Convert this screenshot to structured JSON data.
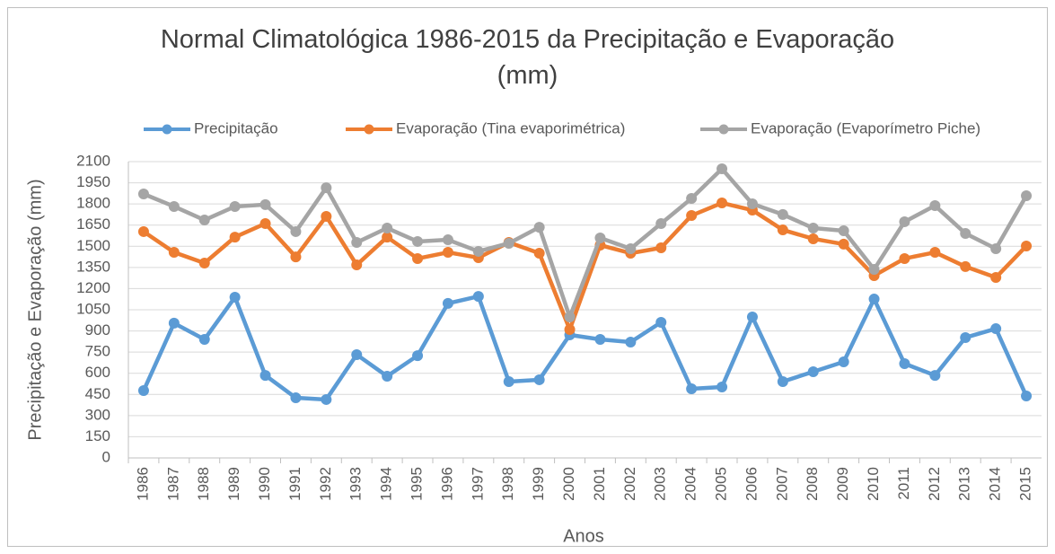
{
  "chart_data": {
    "type": "line",
    "title": "Normal Climatológica 1986-2015 da Precipitação e Evaporação (mm)",
    "y_label": "Precipitação e Evaporação (mm)",
    "x_label": "Anos",
    "categories": [
      "1986",
      "1987",
      "1988",
      "1989",
      "1990",
      "1991",
      "1992",
      "1993",
      "1994",
      "1995",
      "1996",
      "1997",
      "1998",
      "1999",
      "2000",
      "2001",
      "2002",
      "2003",
      "2004",
      "2005",
      "2006",
      "2007",
      "2008",
      "2009",
      "2010",
      "2011",
      "2012",
      "2013",
      "2014",
      "2015"
    ],
    "series": [
      {
        "name": "Precipitação",
        "color": "#5b9bd5",
        "values": [
          477,
          955,
          840,
          1139,
          585,
          426,
          414,
          732,
          579,
          725,
          1095,
          1145,
          541,
          554,
          872,
          840,
          821,
          961,
          490,
          503,
          999,
          541,
          611,
          681,
          1126,
          668,
          585,
          853,
          916,
          439
        ]
      },
      {
        "name": "Evaporação (Tina evaporimétrica)",
        "color": "#ed7d31",
        "values": [
          1604,
          1457,
          1381,
          1565,
          1661,
          1425,
          1712,
          1368,
          1565,
          1413,
          1457,
          1419,
          1527,
          1451,
          910,
          1508,
          1451,
          1489,
          1718,
          1807,
          1756,
          1616,
          1553,
          1515,
          1292,
          1413,
          1457,
          1356,
          1279,
          1502
        ]
      },
      {
        "name": "Evaporação (Evaporímetro Piche)",
        "color": "#a5a5a5",
        "values": [
          1871,
          1782,
          1686,
          1782,
          1795,
          1604,
          1915,
          1527,
          1629,
          1534,
          1546,
          1464,
          1521,
          1635,
          999,
          1559,
          1483,
          1661,
          1839,
          2049,
          1801,
          1725,
          1629,
          1610,
          1336,
          1674,
          1788,
          1591,
          1483,
          1858
        ]
      }
    ],
    "ylim": [
      0,
      2100
    ],
    "yticks": [
      0,
      150,
      300,
      450,
      600,
      750,
      900,
      1050,
      1200,
      1350,
      1500,
      1650,
      1800,
      1950,
      2100
    ],
    "grid": true,
    "legend": "top"
  }
}
